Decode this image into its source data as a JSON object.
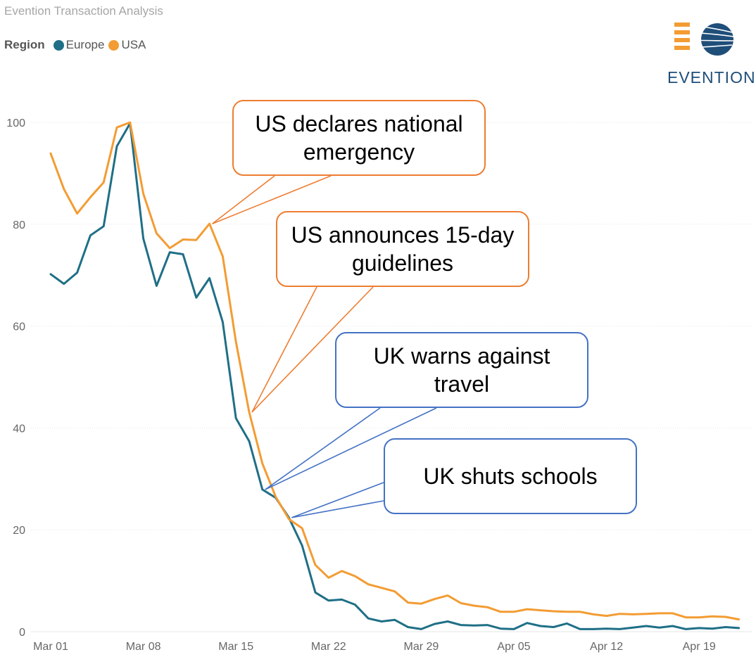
{
  "header": {
    "title": "Evention Transaction Analysis"
  },
  "legend": {
    "label": "Region",
    "items": [
      {
        "name": "Europe",
        "color": "#1f6f86"
      },
      {
        "name": "USA",
        "color": "#f39c33"
      }
    ]
  },
  "logo": {
    "text": "EVENTION"
  },
  "annotations": [
    {
      "text": "US declares national emergency",
      "date": "Mar 13",
      "series": "USA",
      "color": "#ed7d31"
    },
    {
      "text": "US announces 15-day guidelines",
      "date": "Mar 16",
      "series": "USA",
      "color": "#ed7d31"
    },
    {
      "text": "UK warns against travel",
      "date": "Mar 17",
      "series": "Europe",
      "color": "#4472c4"
    },
    {
      "text": "UK shuts schools",
      "date": "Mar 19",
      "series": "Europe",
      "color": "#4472c4"
    }
  ],
  "chart_data": {
    "type": "line",
    "title": "Evention Transaction Analysis",
    "legend_title": "Region",
    "xlabel": "",
    "ylabel": "",
    "ylim": [
      0,
      100
    ],
    "yticks": [
      0,
      20,
      40,
      60,
      80,
      100
    ],
    "grid": "horizontal",
    "x_start": "Mar 01",
    "xtick_labels": [
      "Mar 01",
      "Mar 08",
      "Mar 15",
      "Mar 22",
      "Mar 29",
      "Apr 05",
      "Apr 12",
      "Apr 19"
    ],
    "x": [
      "Mar 01",
      "Mar 02",
      "Mar 03",
      "Mar 04",
      "Mar 05",
      "Mar 06",
      "Mar 07",
      "Mar 08",
      "Mar 09",
      "Mar 10",
      "Mar 11",
      "Mar 12",
      "Mar 13",
      "Mar 14",
      "Mar 15",
      "Mar 16",
      "Mar 17",
      "Mar 18",
      "Mar 19",
      "Mar 20",
      "Mar 21",
      "Mar 22",
      "Mar 23",
      "Mar 24",
      "Mar 25",
      "Mar 26",
      "Mar 27",
      "Mar 28",
      "Mar 29",
      "Mar 30",
      "Mar 31",
      "Apr 01",
      "Apr 02",
      "Apr 03",
      "Apr 04",
      "Apr 05",
      "Apr 06",
      "Apr 07",
      "Apr 08",
      "Apr 09",
      "Apr 10",
      "Apr 11",
      "Apr 12",
      "Apr 13",
      "Apr 14",
      "Apr 15",
      "Apr 16",
      "Apr 17",
      "Apr 18",
      "Apr 19",
      "Apr 20",
      "Apr 21",
      "Apr 22"
    ],
    "series": [
      {
        "name": "Europe",
        "color": "#1f6f86",
        "values": [
          70.2,
          68.3,
          70.5,
          77.8,
          79.6,
          95.3,
          99.8,
          77.2,
          67.9,
          74.5,
          74.1,
          65.6,
          69.4,
          60.8,
          41.9,
          37.4,
          27.9,
          26.3,
          22.4,
          16.9,
          7.7,
          6.1,
          6.3,
          5.3,
          2.6,
          2.0,
          2.3,
          0.9,
          0.5,
          1.5,
          2.0,
          1.3,
          1.2,
          1.3,
          0.6,
          0.5,
          1.7,
          1.1,
          0.9,
          1.6,
          0.5,
          0.5,
          0.6,
          0.5,
          0.8,
          1.1,
          0.8,
          1.1,
          0.5,
          0.7,
          0.6,
          0.9,
          0.7
        ]
      },
      {
        "name": "USA",
        "color": "#f39c33",
        "values": [
          93.9,
          86.9,
          82.1,
          85.3,
          88.2,
          99.0,
          100.0,
          86.0,
          78.2,
          75.3,
          77.0,
          76.9,
          80.1,
          73.7,
          56.9,
          43.1,
          33.0,
          26.5,
          22.1,
          20.3,
          13.1,
          10.6,
          11.9,
          10.9,
          9.3,
          8.6,
          7.9,
          5.7,
          5.5,
          6.4,
          7.1,
          5.6,
          5.1,
          4.8,
          3.9,
          3.9,
          4.4,
          4.2,
          4.0,
          3.9,
          3.9,
          3.4,
          3.1,
          3.5,
          3.4,
          3.5,
          3.6,
          3.6,
          2.8,
          2.8,
          3.0,
          2.9,
          2.4
        ]
      }
    ]
  }
}
